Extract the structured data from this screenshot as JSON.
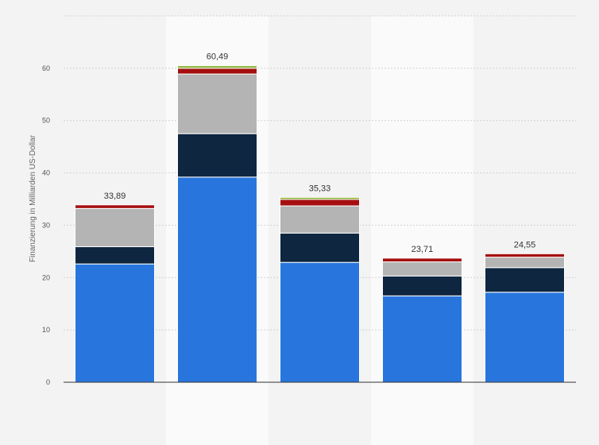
{
  "chart_data": {
    "type": "bar",
    "stacked": true,
    "ylabel": "Finanzierung in Milliarden US-Dollar",
    "xlabel": "",
    "ylim": [
      0,
      70
    ],
    "yticks": [
      0,
      10,
      20,
      30,
      40,
      50,
      60
    ],
    "ytick_labels": [
      "0",
      "10",
      "20",
      "30",
      "40",
      "50",
      "60"
    ],
    "grid": true,
    "categories": [
      "",
      "",
      "",
      "",
      ""
    ],
    "totals": [
      33.89,
      60.49,
      35.33,
      23.71,
      24.55
    ],
    "total_labels": [
      "33,89",
      "60,49",
      "35,33",
      "23,71",
      "24,55"
    ],
    "highlighted_columns": [
      1,
      3
    ],
    "series": [
      {
        "name": "",
        "color": "#2876dd",
        "values": [
          22.6,
          39.2,
          22.9,
          16.5,
          17.2
        ]
      },
      {
        "name": "",
        "color": "#0f2640",
        "values": [
          3.3,
          8.3,
          5.6,
          3.8,
          4.7
        ]
      },
      {
        "name": "",
        "color": "#b4b4b4",
        "values": [
          7.3,
          11.4,
          5.2,
          2.7,
          2.0
        ]
      },
      {
        "name": "",
        "color": "#a50f0f",
        "values": [
          0.69,
          1.09,
          1.23,
          0.71,
          0.65
        ]
      },
      {
        "name": "",
        "color": "#8db43c",
        "values": [
          0.0,
          0.5,
          0.4,
          0.0,
          0.0
        ]
      }
    ]
  }
}
